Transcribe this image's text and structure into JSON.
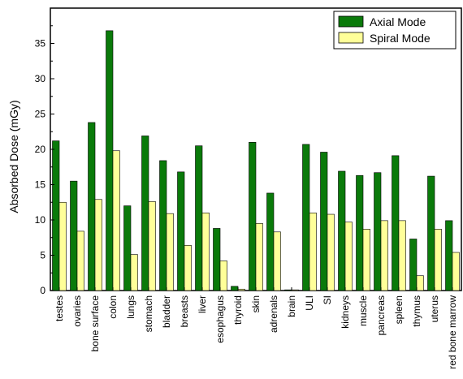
{
  "chart_data": {
    "type": "bar",
    "title": "",
    "xlabel": "",
    "ylabel": "Absorbed Dose (mGy)",
    "ylim": [
      0,
      40
    ],
    "yticks": [
      0,
      5,
      10,
      15,
      20,
      25,
      30,
      35
    ],
    "grid": false,
    "legend_position": "top-right",
    "categories": [
      "testes",
      "ovaries",
      "bone surface",
      "colon",
      "lungs",
      "stomach",
      "bladder",
      "breasts",
      "liver",
      "esophagus",
      "thyroid",
      "skin",
      "adrenals",
      "brain",
      "ULI",
      "SI",
      "kidneys",
      "muscle",
      "pancreas",
      "spleen",
      "thymus",
      "uterus",
      "red bone marrow"
    ],
    "series": [
      {
        "name": "Axial Mode",
        "color": "#0a7a0a",
        "values": [
          21.2,
          15.5,
          23.8,
          36.8,
          12.0,
          21.9,
          18.4,
          16.8,
          20.5,
          8.8,
          0.6,
          21.0,
          13.8,
          0.1,
          20.7,
          19.6,
          16.9,
          16.3,
          16.7,
          19.1,
          7.3,
          16.2,
          9.9
        ]
      },
      {
        "name": "Spiral Mode",
        "color": "#ffff99",
        "values": [
          12.5,
          8.4,
          12.9,
          19.8,
          5.1,
          12.6,
          10.9,
          6.4,
          11.0,
          4.2,
          0.2,
          9.5,
          8.3,
          0.1,
          11.0,
          10.8,
          9.7,
          8.7,
          9.9,
          9.9,
          2.1,
          8.7,
          5.4
        ]
      }
    ]
  }
}
